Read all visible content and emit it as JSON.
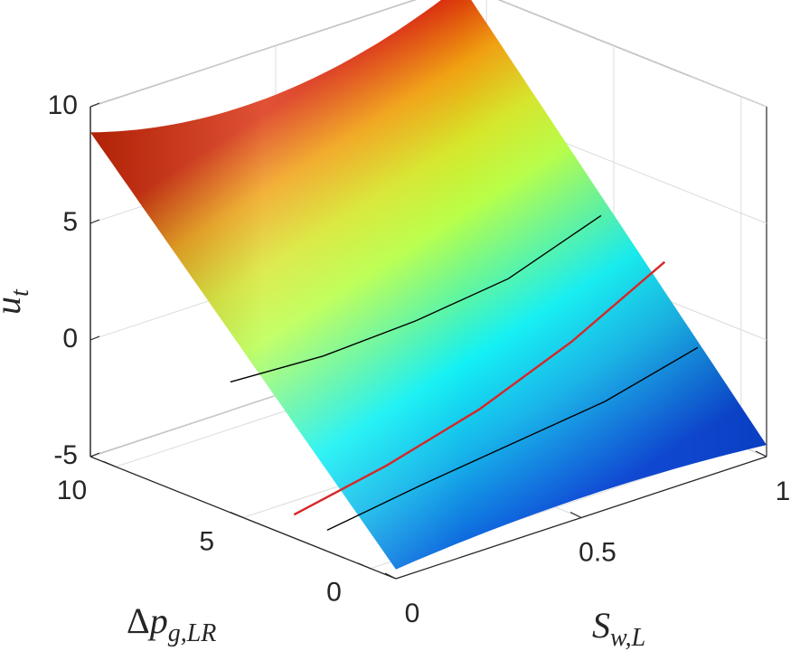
{
  "chart_data": {
    "type": "surface",
    "title": "",
    "xlabel": "S_{w,L}",
    "ylabel": "Δp_{g,LR}",
    "zlabel": "u_t",
    "xlim": [
      0,
      1
    ],
    "ylim": [
      -1,
      11
    ],
    "zlim": [
      -5,
      10
    ],
    "x_ticks": [
      "0",
      "0.5",
      "1"
    ],
    "y_ticks": [
      "0",
      "5",
      "10"
    ],
    "z_ticks": [
      "-5",
      "0",
      "5",
      "10"
    ],
    "grid": true,
    "colormap": "jet",
    "surface_corners": [
      {
        "x": 0,
        "y": 11,
        "z": 8.9
      },
      {
        "x": 0,
        "y": -1,
        "z": -4.6
      },
      {
        "x": 1,
        "y": -1,
        "z": -4.5
      },
      {
        "x": 1,
        "y": 11,
        "z": 10.0
      }
    ],
    "series": [
      {
        "color": "#000000",
        "y": 5.5,
        "x": [
          0.0,
          0.25,
          0.5,
          0.75,
          1.0
        ],
        "z": [
          0.6,
          0.4,
          0.6,
          1.1,
          2.5
        ]
      },
      {
        "color": "#d62728",
        "y": 3.0,
        "x": [
          0.0,
          0.25,
          0.5,
          0.75,
          1.0
        ],
        "z": [
          -4.0,
          -3.2,
          -2.1,
          -0.5,
          1.6
        ]
      },
      {
        "color": "#000000",
        "y": 1.7,
        "x": [
          0.0,
          0.25,
          0.5,
          0.75,
          1.0
        ],
        "z": [
          -4.1,
          -3.5,
          -3.0,
          -2.5,
          -1.5
        ]
      }
    ]
  },
  "labels": {
    "z_main": "u",
    "z_sub": "t",
    "x_main": "S",
    "x_sub": "w,L",
    "y_delta": "Δ",
    "y_main": "p",
    "y_sub": "g,LR"
  }
}
